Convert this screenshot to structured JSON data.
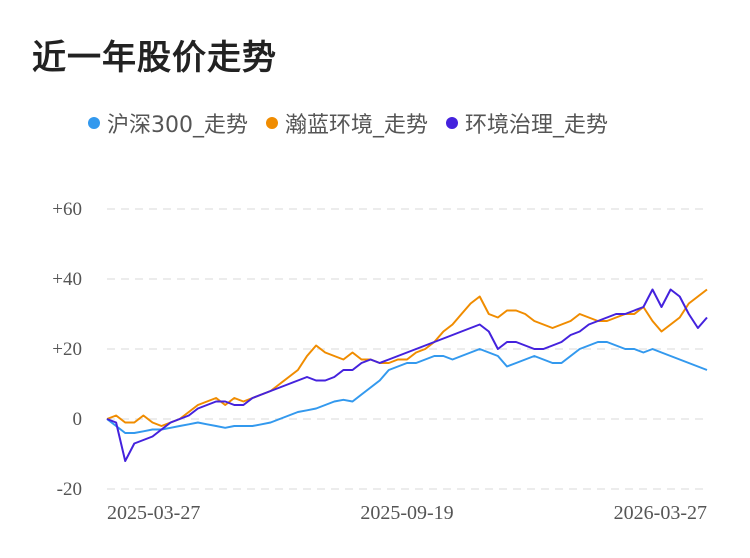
{
  "chart_data": {
    "type": "line",
    "title": "近一年股价走势",
    "xlabel": "",
    "ylabel": "",
    "ylim": [
      -20,
      60
    ],
    "y_ticks": [
      "+60",
      "+40",
      "+20",
      "0",
      "-20"
    ],
    "y_tick_values": [
      60,
      40,
      20,
      0,
      -20
    ],
    "x_tick_labels": [
      "2025-03-27",
      "2025-09-19",
      "2026-03-27"
    ],
    "grid": true,
    "legend_position": "top",
    "series": [
      {
        "name": "沪深300_走势",
        "color": "#3399ee",
        "values": [
          0,
          -2,
          -4,
          -4,
          -3.5,
          -3,
          -3,
          -2.5,
          -2,
          -1.5,
          -1,
          -1.5,
          -2,
          -2.5,
          -2,
          -2,
          -2,
          -1.5,
          -1,
          0,
          1,
          2,
          2.5,
          3,
          4,
          5,
          5.5,
          5,
          7,
          9,
          11,
          14,
          15,
          16,
          16,
          17,
          18,
          18,
          17,
          18,
          19,
          20,
          19,
          18,
          15,
          16,
          17,
          18,
          17,
          16,
          16,
          18,
          20,
          21,
          22,
          22,
          21,
          20,
          20,
          19,
          20,
          19,
          18,
          17,
          16,
          15,
          14
        ]
      },
      {
        "name": "瀚蓝环境_走势",
        "color": "#f08c00",
        "values": [
          0,
          1,
          -1,
          -1,
          1,
          -1,
          -2,
          -1,
          0,
          2,
          4,
          5,
          6,
          4,
          6,
          5,
          6,
          7,
          8,
          10,
          12,
          14,
          18,
          21,
          19,
          18,
          17,
          19,
          17,
          17,
          16,
          16,
          17,
          17,
          19,
          20,
          22,
          25,
          27,
          30,
          33,
          35,
          30,
          29,
          31,
          31,
          30,
          28,
          27,
          26,
          27,
          28,
          30,
          29,
          28,
          28,
          29,
          30,
          30,
          32,
          28,
          25,
          27,
          29,
          33,
          35,
          37
        ]
      },
      {
        "name": "环境治理_走势",
        "color": "#4422dd",
        "values": [
          0,
          -1,
          -12,
          -7,
          -6,
          -5,
          -3,
          -1,
          0,
          1,
          3,
          4,
          5,
          5,
          4,
          4,
          6,
          7,
          8,
          9,
          10,
          11,
          12,
          11,
          11,
          12,
          14,
          14,
          16,
          17,
          16,
          17,
          18,
          19,
          20,
          21,
          22,
          23,
          24,
          25,
          26,
          27,
          25,
          20,
          22,
          22,
          21,
          20,
          20,
          21,
          22,
          24,
          25,
          27,
          28,
          29,
          30,
          30,
          31,
          32,
          37,
          32,
          37,
          35,
          30,
          26,
          29
        ]
      }
    ]
  }
}
